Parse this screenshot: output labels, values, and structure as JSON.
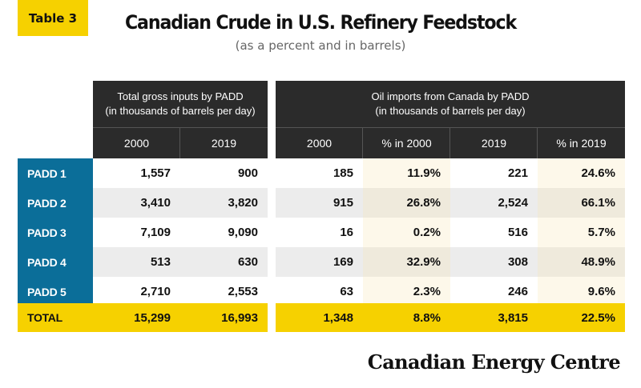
{
  "tag": "Table 3",
  "title": "Canadian Crude in U.S. Refinery Feedstock",
  "subtitle": "(as a percent and in barrels)",
  "group_headers": {
    "total_inputs": [
      "Total gross inputs by PADD",
      "(in thousands of barrels per day)"
    ],
    "imports": [
      "Oil imports from Canada by PADD",
      "(in thousands of barrels per day)"
    ]
  },
  "columns": [
    "2000",
    "2019",
    "2000",
    "% in 2000",
    "2019",
    "% in 2019"
  ],
  "rows": [
    {
      "label": "PADD 1",
      "values": [
        "1,557",
        "900",
        "185",
        "11.9%",
        "221",
        "24.6%"
      ]
    },
    {
      "label": "PADD 2",
      "values": [
        "3,410",
        "3,820",
        "915",
        "26.8%",
        "2,524",
        "66.1%"
      ]
    },
    {
      "label": "PADD 3",
      "values": [
        "7,109",
        "9,090",
        "16",
        "0.2%",
        "516",
        "5.7%"
      ]
    },
    {
      "label": "PADD 4",
      "values": [
        "513",
        "630",
        "169",
        "32.9%",
        "308",
        "48.9%"
      ]
    },
    {
      "label": "PADD 5",
      "values": [
        "2,710",
        "2,553",
        "63",
        "2.3%",
        "246",
        "9.6%"
      ]
    }
  ],
  "total": {
    "label": "TOTAL",
    "values": [
      "15,299",
      "16,993",
      "1,348",
      "8.8%",
      "3,815",
      "22.5%"
    ]
  },
  "logo": "Canadian Energy Centre",
  "colors": {
    "accent_yellow": "#f6d100",
    "row_label_blue": "#0b6e99",
    "header_dark": "#2b2b2b",
    "pct_tint_light": "#fdf8ea",
    "pct_tint_dark": "#efeadc",
    "stripe_gray": "#ececec"
  }
}
